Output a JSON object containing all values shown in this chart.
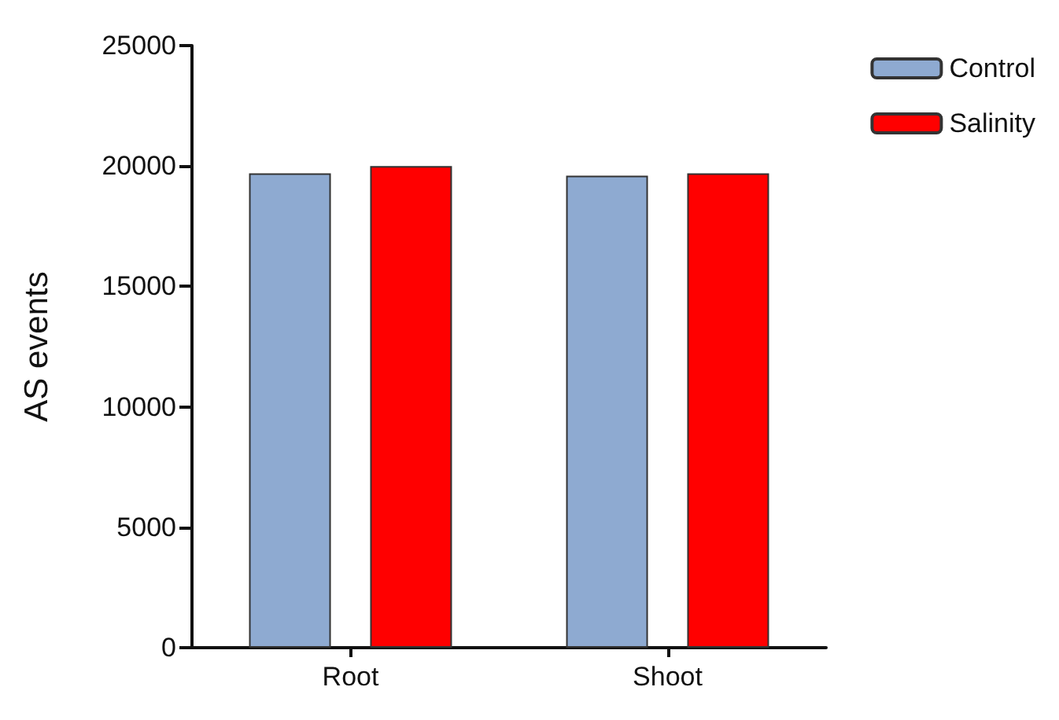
{
  "chart_data": {
    "type": "bar",
    "ylabel": "AS events",
    "categories": [
      "Root",
      "Shoot"
    ],
    "series": [
      {
        "name": "Control",
        "color": "#8eaad1",
        "values": [
          19700,
          19600
        ]
      },
      {
        "name": "Salinity",
        "color": "#ff0000",
        "values": [
          20000,
          19700
        ]
      }
    ],
    "ylim": [
      0,
      25000
    ],
    "yticks": [
      0,
      5000,
      10000,
      15000,
      20000,
      25000
    ],
    "grid": false,
    "legend": "top right"
  }
}
